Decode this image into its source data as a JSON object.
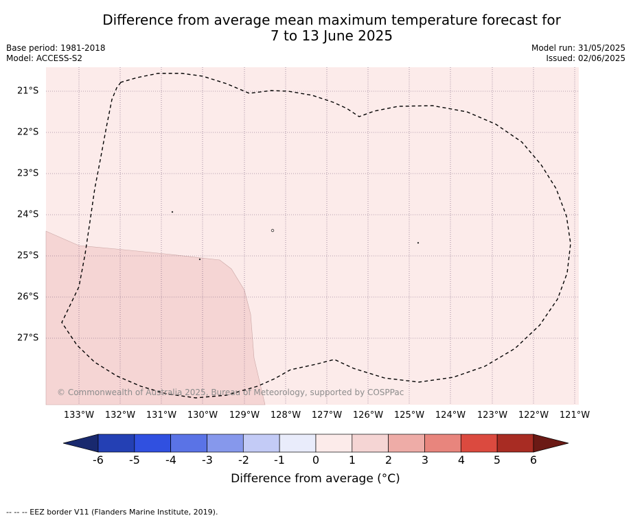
{
  "title_line1": "Difference from average mean maximum temperature forecast for",
  "title_line2": "7 to 13 June 2025",
  "meta_left": [
    "Base period: 1981-2018",
    "Model: ACCESS-S2"
  ],
  "meta_right": [
    "Model run: 31/05/2025",
    "Issued: 02/06/2025"
  ],
  "copyright": "© Commonwealth of Australia 2025, Bureau of Meteorology, supported by COSPPac",
  "lon_labels": [
    "133°W",
    "132°W",
    "131°W",
    "130°W",
    "129°W",
    "128°W",
    "127°W",
    "126°W",
    "125°W",
    "124°W",
    "123°W",
    "122°W",
    "121°W"
  ],
  "lat_labels": [
    "21°S",
    "22°S",
    "23°S",
    "24°S",
    "25°S",
    "26°S",
    "27°S"
  ],
  "colorbar": {
    "label": "Difference from average (°C)",
    "ticks": [
      "-6",
      "-5",
      "-4",
      "-3",
      "-2",
      "-1",
      "0",
      "1",
      "2",
      "3",
      "4",
      "5",
      "6"
    ],
    "colors": [
      "#19296e",
      "#2440b4",
      "#3050e0",
      "#5a73e6",
      "#8698ec",
      "#c3cbf6",
      "#e9ecfb",
      "#fcebea",
      "#f5d5d4",
      "#eeaca7",
      "#e8857d",
      "#db4a3f",
      "#a82c23",
      "#6b1a15"
    ]
  },
  "map": {
    "background_anomaly_class": "0 to 1",
    "lower_left_anomaly_class": "1 to 2",
    "outline": "EEZ border"
  },
  "eez_note": "-- -- -- EEZ border V11 (Flanders Marine Institute, 2019)."
}
